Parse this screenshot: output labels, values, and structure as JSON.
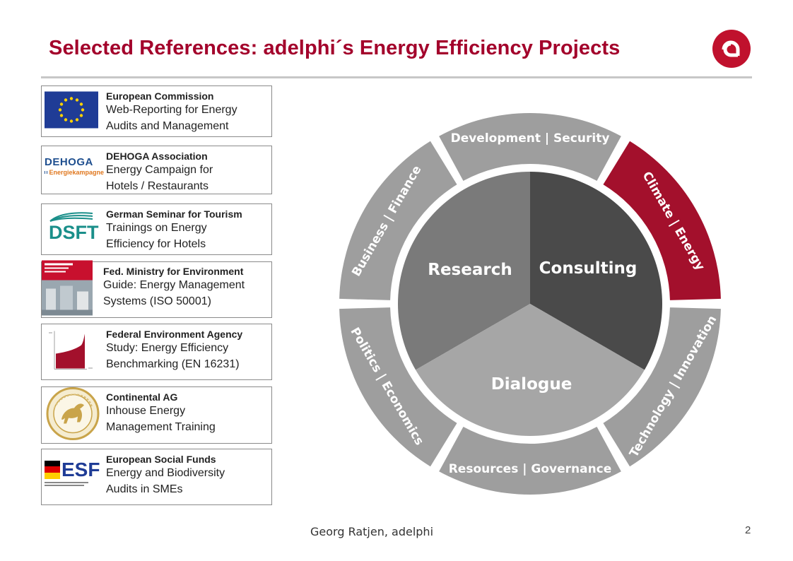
{
  "title": "Selected References: adelphi´s Energy Efficiency Projects",
  "logo": {
    "icon": "adelphi-a-logo",
    "color": "#c0112d"
  },
  "references": [
    {
      "org": "European Commission",
      "line1": "Web-Reporting for Energy",
      "line2": "Audits and Management",
      "icon": "eu-flag-icon"
    },
    {
      "org": "DEHOGA Association",
      "line1": "Energy Campaign for",
      "line2": "Hotels / Restaurants",
      "icon": "dehoga-logo-icon",
      "logo_text": "DEHOGA",
      "logo_sub": "Energiekampagne"
    },
    {
      "org": "German Seminar for Tourism",
      "line1": "Trainings on Energy",
      "line2": "Efficiency for Hotels",
      "icon": "dsft-logo-icon",
      "logo_text": "DSFT"
    },
    {
      "org": "Fed. Ministry for Environment",
      "line1": "Guide: Energy Management",
      "line2": "Systems (ISO 50001)",
      "icon": "guide-cover-icon"
    },
    {
      "org": "Federal Environment Agency",
      "line1": "Study: Energy Efficiency",
      "line2": "Benchmarking (EN 16231)",
      "icon": "benchmark-chart-icon"
    },
    {
      "org": "Continental AG",
      "line1": "Inhouse Energy",
      "line2": "Management Training",
      "icon": "continental-horse-logo-icon"
    },
    {
      "org": "European Social Funds",
      "line1": "Energy and Biodiversity",
      "line2": "Audits in SMEs",
      "icon": "esf-logo-icon",
      "logo_text": "ESF"
    }
  ],
  "wheel": {
    "core": [
      "Research",
      "Consulting",
      "Dialogue"
    ],
    "segments": [
      "Development | Security",
      "Climate | Energy",
      "Technology | Innovation",
      "Resources | Governance",
      "Politics | Economics",
      "Business | Finance"
    ],
    "colors": {
      "research": "#7a7a7a",
      "consulting": "#4a4a4a",
      "dialogue": "#a6a6a6",
      "segment": "#9e9e9e",
      "highlight": "#a3102c"
    }
  },
  "footer": "Georg Ratjen, adelphi",
  "page_number": "2"
}
